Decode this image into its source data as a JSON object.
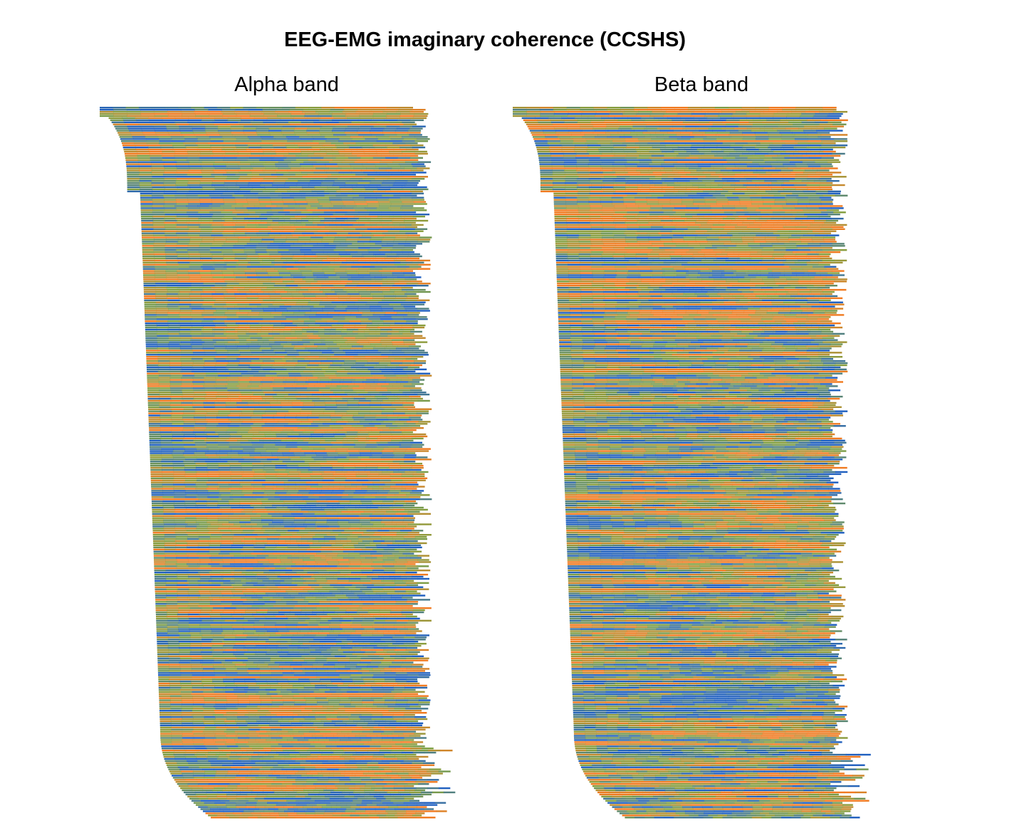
{
  "chart_data": [
    {
      "type": "heatmap",
      "title": "Alpha band",
      "rows": 340,
      "row_length_profile": {
        "start_fraction_min": 0.0,
        "start_fraction_max": 0.33,
        "end_fraction_min": 0.88,
        "end_fraction_max": 1.0
      },
      "colormap": {
        "low": "#1f5fbf",
        "mid": "#7f9f3f",
        "high": "#f07a20"
      },
      "axes": "hidden"
    },
    {
      "type": "heatmap",
      "title": "Beta band",
      "rows": 340,
      "row_length_profile": {
        "start_fraction_min": 0.0,
        "start_fraction_max": 0.33,
        "end_fraction_min": 0.88,
        "end_fraction_max": 1.0
      },
      "colormap": {
        "low": "#1f5fbf",
        "mid": "#7f9f3f",
        "high": "#f07a20"
      },
      "axes": "hidden"
    }
  ],
  "figure": {
    "title": "EEG-EMG imaginary coherence (CCSHS)",
    "panels": [
      {
        "title": "Alpha band"
      },
      {
        "title": "Beta band"
      }
    ]
  }
}
